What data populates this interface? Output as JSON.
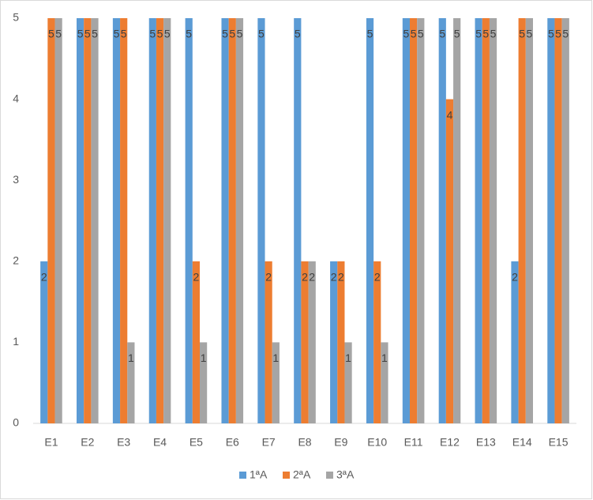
{
  "chart_data": {
    "type": "bar",
    "categories": [
      "E1",
      "E2",
      "E3",
      "E4",
      "E5",
      "E6",
      "E7",
      "E8",
      "E9",
      "E10",
      "E11",
      "E12",
      "E13",
      "E14",
      "E15"
    ],
    "series": [
      {
        "name": "1ªA",
        "color": "#5b9bd5",
        "values": [
          2,
          5,
          5,
          5,
          5,
          5,
          5,
          5,
          2,
          5,
          5,
          5,
          5,
          2,
          5
        ]
      },
      {
        "name": "2ªA",
        "color": "#ed7d31",
        "values": [
          5,
          5,
          5,
          5,
          2,
          5,
          2,
          2,
          2,
          2,
          5,
          4,
          5,
          5,
          5
        ]
      },
      {
        "name": "3ªA",
        "color": "#a5a5a5",
        "values": [
          5,
          5,
          1,
          5,
          1,
          5,
          1,
          2,
          1,
          1,
          5,
          5,
          5,
          5,
          5
        ]
      }
    ],
    "ylim": [
      0,
      5
    ],
    "yticks": [
      0,
      1,
      2,
      3,
      4,
      5
    ],
    "grid": false,
    "legend": "bottom"
  }
}
